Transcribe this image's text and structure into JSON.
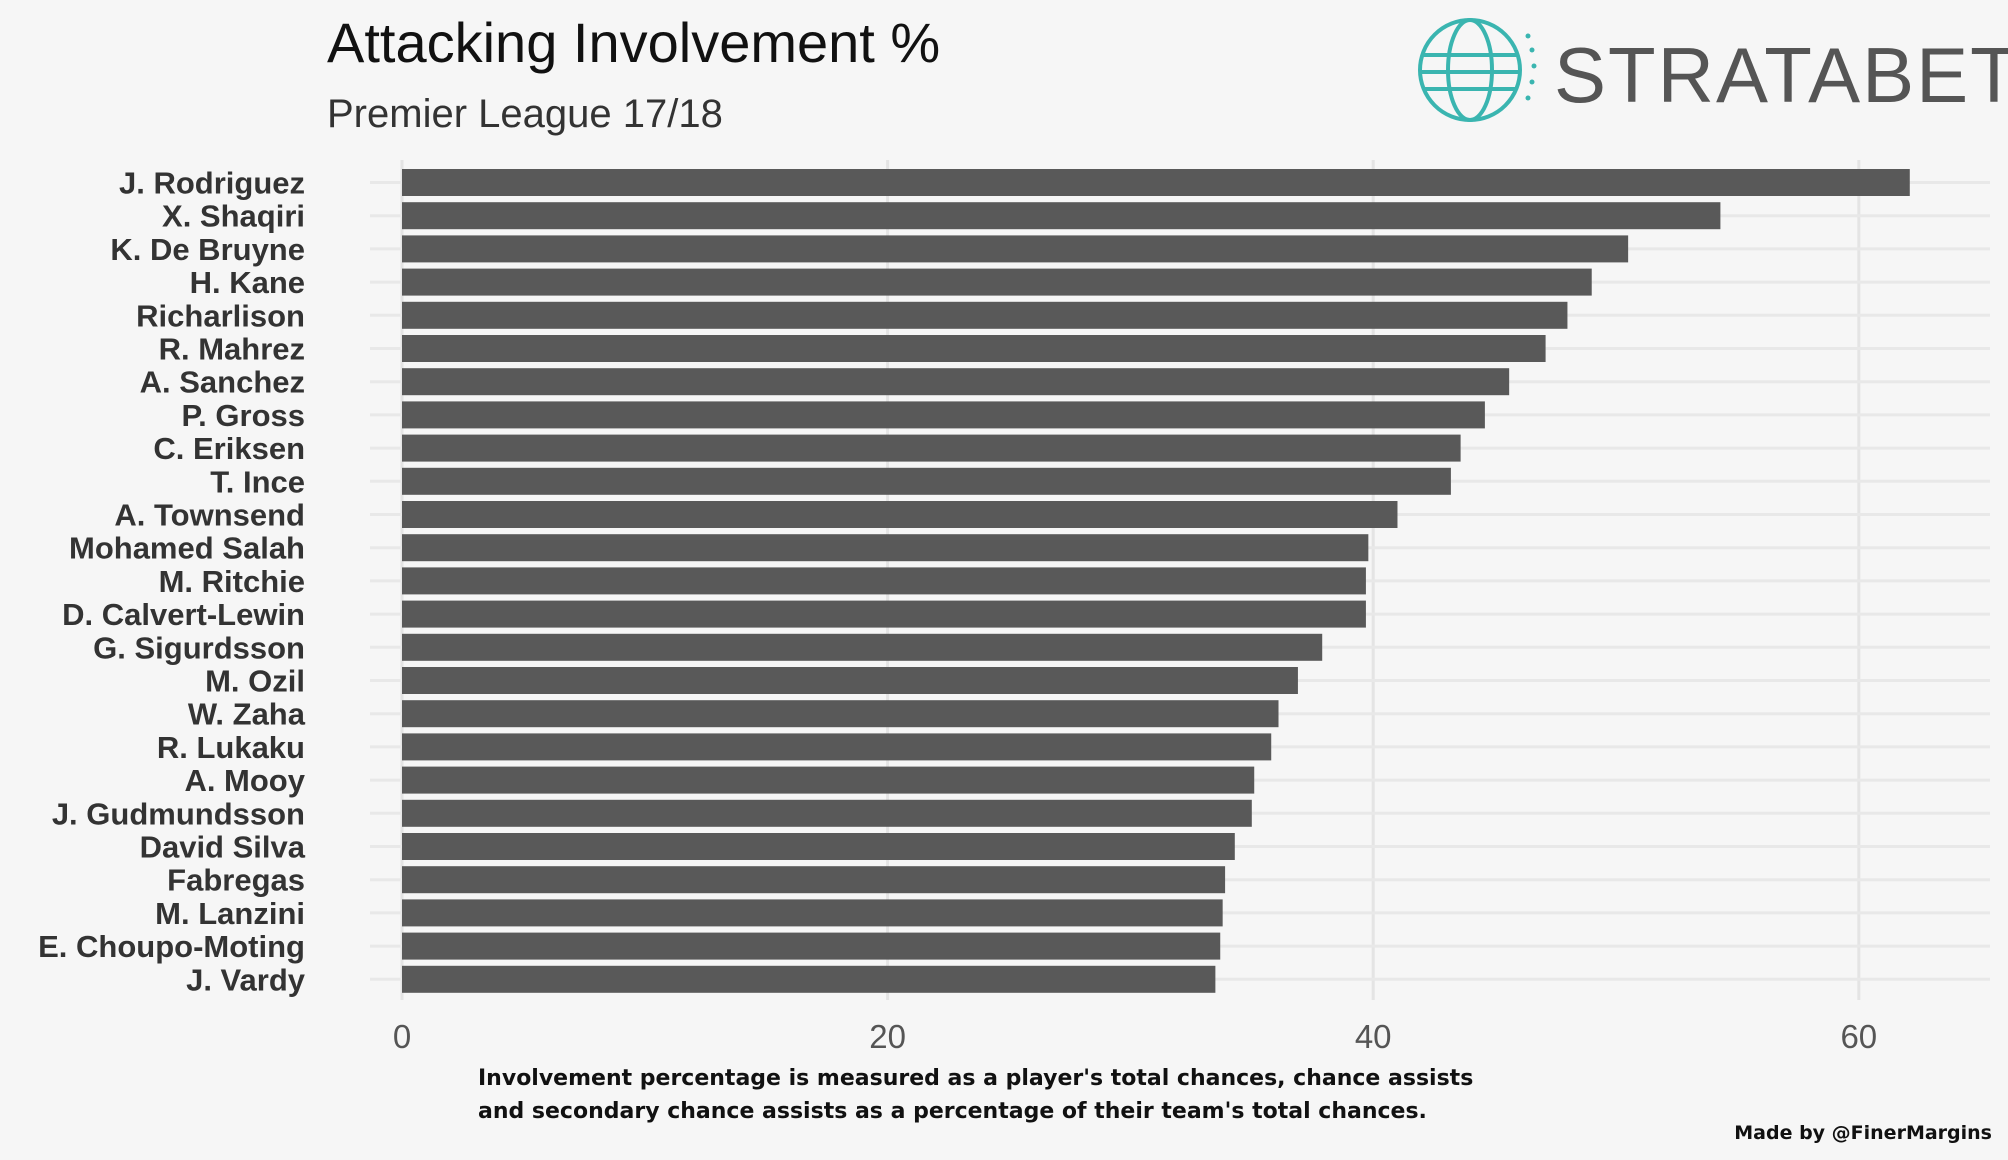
{
  "chart_data": {
    "type": "bar",
    "orientation": "horizontal",
    "title": "Attacking Involvement %",
    "subtitle": "Premier League 17/18",
    "categories": [
      "J. Rodriguez",
      "X. Shaqiri",
      "K. De Bruyne",
      "H. Kane",
      "Richarlison",
      "R. Mahrez",
      "A. Sanchez",
      "P. Gross",
      "C. Eriksen",
      "T. Ince",
      "A. Townsend",
      "Mohamed Salah",
      "M. Ritchie",
      "D. Calvert-Lewin",
      "G. Sigurdsson",
      "M. Ozil",
      "W. Zaha",
      "R. Lukaku",
      "A. Mooy",
      "J. Gudmundsson",
      "David Silva",
      "Fabregas",
      "M. Lanzini",
      "E. Choupo-Moting",
      "J. Vardy"
    ],
    "values": [
      62.1,
      54.3,
      50.5,
      49.0,
      48.0,
      47.1,
      45.6,
      44.6,
      43.6,
      43.2,
      41.0,
      39.8,
      39.7,
      39.7,
      37.9,
      36.9,
      36.1,
      35.8,
      35.1,
      35.0,
      34.3,
      33.9,
      33.8,
      33.7,
      33.5
    ],
    "xlim": [
      0,
      65
    ],
    "xticks": [
      0,
      20,
      40,
      60
    ],
    "grid": true,
    "bar_color": "#595959"
  },
  "logo": {
    "text": "STRATABET",
    "icon": "globe-icon",
    "color": "#3ab5b0"
  },
  "footnote": "Involvement percentage is measured as a player's total chances, chance assists and secondary chance assists as a percentage of their team's total chances.",
  "credit": "Made by @FinerMargins"
}
